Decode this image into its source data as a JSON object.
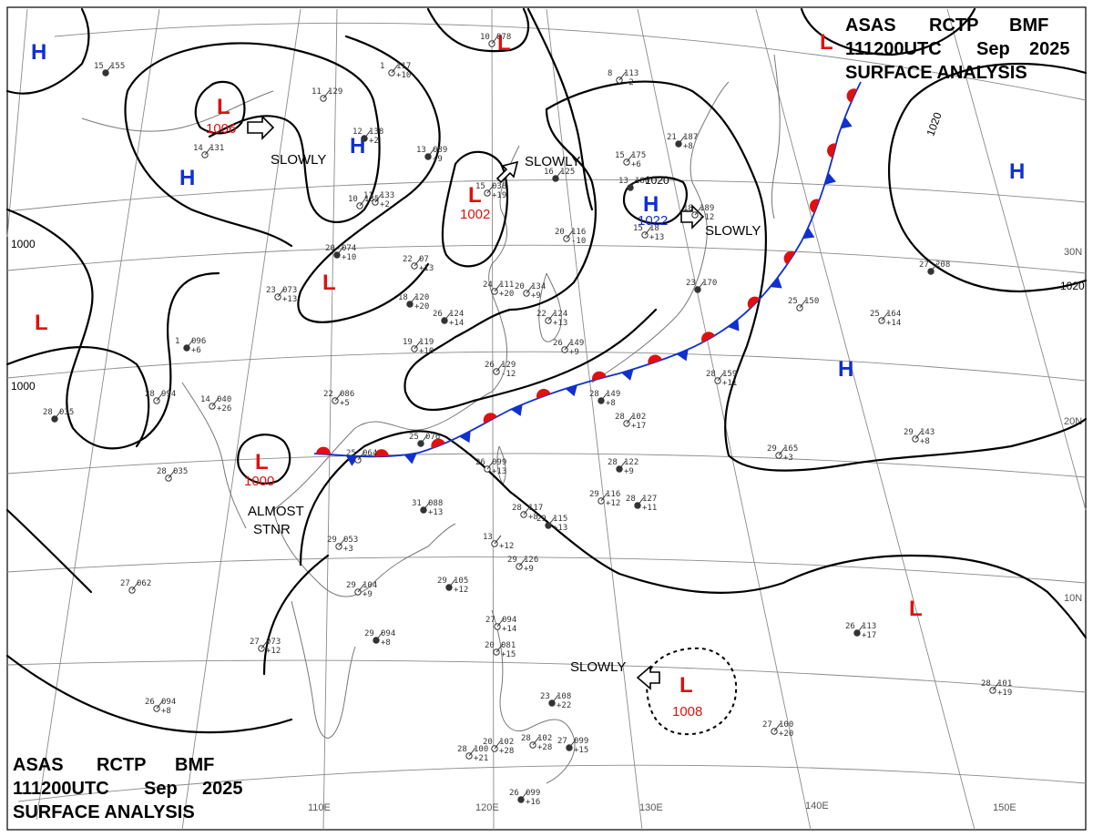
{
  "header": {
    "top_right": {
      "line1": [
        "ASAS",
        "RCTP",
        "BMF"
      ],
      "line2": [
        "111200UTC",
        "Sep",
        "2025"
      ],
      "line3": "SURFACE ANALYSIS"
    },
    "bottom_left": {
      "line1": [
        "ASAS",
        "RCTP",
        "BMF"
      ],
      "line2": [
        "111200UTC",
        "Sep",
        "2025"
      ],
      "line3": "SURFACE ANALYSIS"
    }
  },
  "latitude_labels": [
    "30N",
    "20N",
    "10N"
  ],
  "longitude_labels": [
    "110E",
    "120E",
    "130E",
    "140E",
    "150E"
  ],
  "isobar_labels": [
    "1000",
    "1000",
    "1020",
    "1020",
    "1020"
  ],
  "colors": {
    "high": "#1030d0",
    "low": "#e01010",
    "warm_front": "#e01010",
    "cold_front": "#1030d0",
    "isobar": "#000000",
    "grid": "#888888",
    "coast": "#777777"
  },
  "pressure_systems": [
    {
      "id": "h-nw",
      "type": "H",
      "letter": "H"
    },
    {
      "id": "h-west",
      "type": "H",
      "letter": "H"
    },
    {
      "id": "h-central",
      "type": "H",
      "letter": "H"
    },
    {
      "id": "h-japan",
      "type": "H",
      "letter": "H",
      "pressure": "1022"
    },
    {
      "id": "h-east",
      "type": "H",
      "letter": "H"
    },
    {
      "id": "h-pacific",
      "type": "H",
      "letter": "H"
    },
    {
      "id": "l-mongolia",
      "type": "L",
      "letter": "L",
      "pressure": "1006"
    },
    {
      "id": "l-north",
      "type": "L",
      "letter": "L"
    },
    {
      "id": "l-korea",
      "type": "L",
      "letter": "L",
      "pressure": "1002"
    },
    {
      "id": "l-ne",
      "type": "L",
      "letter": "L"
    },
    {
      "id": "l-china",
      "type": "L",
      "letter": "L"
    },
    {
      "id": "l-west",
      "type": "L",
      "letter": "L"
    },
    {
      "id": "l-burma",
      "type": "L",
      "letter": "L",
      "pressure": "1000"
    },
    {
      "id": "l-pacific",
      "type": "L",
      "letter": "L"
    },
    {
      "id": "l-philippine",
      "type": "L",
      "letter": "L",
      "pressure": "1008"
    }
  ],
  "motion_labels": [
    "SLOWLY",
    "SLOWLY",
    "SLOWLY",
    "SLOWLY",
    "ALMOST",
    "STNR"
  ],
  "stations": [
    {
      "t": "15",
      "p": "155",
      "d": ""
    },
    {
      "t": "1",
      "p": "117",
      "d": "+10"
    },
    {
      "t": "10",
      "p": "078",
      "d": ""
    },
    {
      "t": "12",
      "p": "138",
      "d": "+2"
    },
    {
      "t": "11",
      "p": "129",
      "d": ""
    },
    {
      "t": "14",
      "p": "131",
      "d": ""
    },
    {
      "t": "13",
      "p": "089",
      "d": "+9"
    },
    {
      "t": "11",
      "p": "133",
      "d": "+2"
    },
    {
      "t": "10",
      "p": "135",
      "d": ""
    },
    {
      "t": "20",
      "p": "074",
      "d": "+10"
    },
    {
      "t": "22",
      "p": "07",
      "d": "+13"
    },
    {
      "t": "15",
      "p": "038",
      "d": "+19"
    },
    {
      "t": "16",
      "p": "125",
      "d": ""
    },
    {
      "t": "8",
      "p": "113",
      "d": "-2"
    },
    {
      "t": "15",
      "p": "175",
      "d": "+6"
    },
    {
      "t": "13",
      "p": "186",
      "d": ""
    },
    {
      "t": "15",
      "p": "18",
      "d": "+13"
    },
    {
      "t": "18",
      "p": "189",
      "d": "+12"
    },
    {
      "t": "21",
      "p": "187",
      "d": "+8"
    },
    {
      "t": "20",
      "p": "116",
      "d": "-10"
    },
    {
      "t": "23",
      "p": "073",
      "d": "+13"
    },
    {
      "t": "18",
      "p": "120",
      "d": "+20"
    },
    {
      "t": "24",
      "p": "111",
      "d": "+20"
    },
    {
      "t": "20",
      "p": "134",
      "d": "+9"
    },
    {
      "t": "26",
      "p": "124",
      "d": "+14"
    },
    {
      "t": "22",
      "p": "124",
      "d": "+13"
    },
    {
      "t": "19",
      "p": "119",
      "d": "+10"
    },
    {
      "t": "1",
      "p": "096",
      "d": "+6"
    },
    {
      "t": "26",
      "p": "129",
      "d": "-12"
    },
    {
      "t": "26",
      "p": "149",
      "d": "+9"
    },
    {
      "t": "23",
      "p": "170",
      "d": ""
    },
    {
      "t": "25",
      "p": "150",
      "d": ""
    },
    {
      "t": "25",
      "p": "164",
      "d": "+14"
    },
    {
      "t": "27",
      "p": "208",
      "d": ""
    },
    {
      "t": "14",
      "p": "040",
      "d": "+26"
    },
    {
      "t": "22",
      "p": "086",
      "d": "+5"
    },
    {
      "t": "28",
      "p": "035",
      "d": ""
    },
    {
      "t": "28",
      "p": "994",
      "d": ""
    },
    {
      "t": "28",
      "p": "035",
      "d": ""
    },
    {
      "t": "28",
      "p": "149",
      "d": "+8"
    },
    {
      "t": "28",
      "p": "102",
      "d": "+17"
    },
    {
      "t": "28",
      "p": "159",
      "d": "+11"
    },
    {
      "t": "25",
      "p": "076",
      "d": ""
    },
    {
      "t": "25",
      "p": "064",
      "d": ""
    },
    {
      "t": "26",
      "p": "099",
      "d": "+13"
    },
    {
      "t": "28",
      "p": "122",
      "d": "+9"
    },
    {
      "t": "29",
      "p": "165",
      "d": "+3"
    },
    {
      "t": "29",
      "p": "143",
      "d": "+8"
    },
    {
      "t": "31",
      "p": "088",
      "d": "+13"
    },
    {
      "t": "28",
      "p": "117",
      "d": "+8"
    },
    {
      "t": "29",
      "p": "116",
      "d": "+12"
    },
    {
      "t": "28",
      "p": "127",
      "d": "+11"
    },
    {
      "t": "29",
      "p": "053",
      "d": "+3"
    },
    {
      "t": "13",
      "p": "",
      "d": "+12"
    },
    {
      "t": "29",
      "p": "115",
      "d": "+13"
    },
    {
      "t": "29",
      "p": "126",
      "d": "+9"
    },
    {
      "t": "29",
      "p": "104",
      "d": "+9"
    },
    {
      "t": "29",
      "p": "105",
      "d": "+12"
    },
    {
      "t": "27",
      "p": "062",
      "d": ""
    },
    {
      "t": "27",
      "p": "073",
      "d": "+12"
    },
    {
      "t": "29",
      "p": "094",
      "d": "+8"
    },
    {
      "t": "27",
      "p": "094",
      "d": "+14"
    },
    {
      "t": "20",
      "p": "081",
      "d": "+15"
    },
    {
      "t": "26",
      "p": "113",
      "d": "+17"
    },
    {
      "t": "28",
      "p": "101",
      "d": "+19"
    },
    {
      "t": "26",
      "p": "094",
      "d": "+8"
    },
    {
      "t": "23",
      "p": "108",
      "d": "+22"
    },
    {
      "t": "28",
      "p": "102",
      "d": "+28"
    },
    {
      "t": "20",
      "p": "102",
      "d": "+28"
    },
    {
      "t": "27",
      "p": "099",
      "d": "+15"
    },
    {
      "t": "27",
      "p": "100",
      "d": "+20"
    },
    {
      "t": "28",
      "p": "100",
      "d": "+21"
    },
    {
      "t": "26",
      "p": "099",
      "d": "+16"
    }
  ]
}
